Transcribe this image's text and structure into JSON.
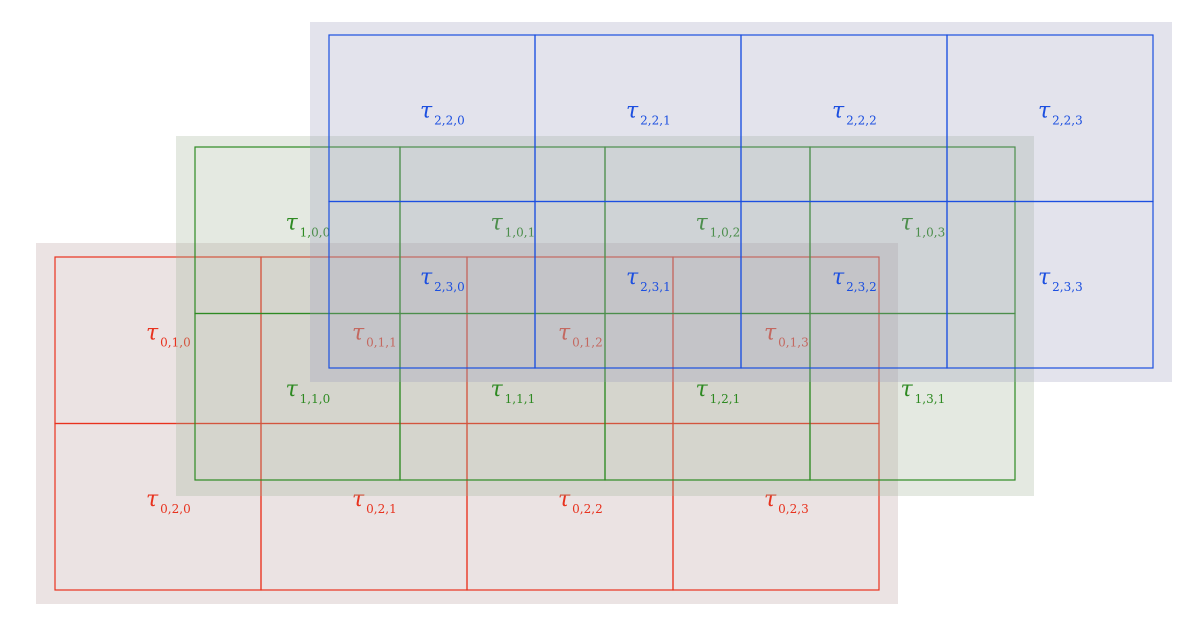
{
  "colors": {
    "background": "#ffffff",
    "layer_0": {
      "stroke": "#e8321e",
      "fill": "#b79a9a",
      "fill_opacity": 0.28
    },
    "layer_1": {
      "stroke": "#2e8a22",
      "fill": "#9eb094",
      "fill_opacity": 0.28
    },
    "layer_2": {
      "stroke": "#1c4fe0",
      "fill": "#9c9cba",
      "fill_opacity": 0.28
    }
  },
  "symbol": "τ",
  "layers": [
    {
      "id": "layer_0",
      "color_key": "layer_0",
      "labels": [
        [
          "0,1,0",
          "0,1,1",
          "0,1,2",
          "0,1,3"
        ],
        [
          "0,2,0",
          "0,2,1",
          "0,2,2",
          "0,2,3"
        ]
      ]
    },
    {
      "id": "layer_1",
      "color_key": "layer_1",
      "labels": [
        [
          "1,0,0",
          "1,0,1",
          "1,0,2",
          "1,0,3"
        ],
        [
          "1,1,0",
          "1,1,1",
          "1,2,1",
          "1,3,1"
        ]
      ]
    },
    {
      "id": "layer_2",
      "color_key": "layer_2",
      "labels": [
        [
          "2,2,0",
          "2,2,1",
          "2,2,2",
          "2,2,3"
        ],
        [
          "2,3,0",
          "2,3,1",
          "2,3,2",
          "2,3,3"
        ]
      ]
    }
  ]
}
